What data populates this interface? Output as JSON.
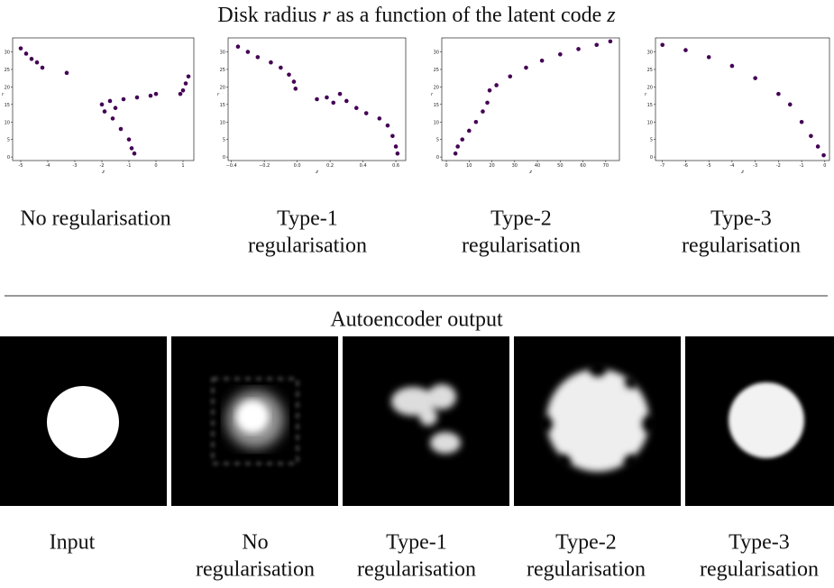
{
  "title_parts": [
    "Disk radius ",
    "r",
    " as a function of the latent code ",
    "z"
  ],
  "chart_data": [
    {
      "type": "scatter",
      "xlabel": "z",
      "ylabel": "r",
      "color": "#440154",
      "x": [
        -5.0,
        -4.8,
        -4.6,
        -4.4,
        -4.2,
        -3.3,
        -2.0,
        -1.9,
        -1.7,
        -1.5,
        -1.2,
        -0.7,
        -0.2,
        0,
        -1.6,
        -1.3,
        -1.0,
        -0.9,
        -0.8,
        0.9,
        1.0,
        1.1,
        1.2
      ],
      "values": [
        31,
        29.5,
        28,
        27,
        25.5,
        24,
        15,
        13,
        16,
        14,
        16.5,
        17,
        17.5,
        18,
        11,
        8,
        5,
        2.5,
        1,
        18,
        19,
        21,
        23
      ],
      "xlim": [
        -5.3,
        1.4
      ],
      "xticks": [
        -5,
        -4,
        -3,
        -2,
        -1,
        0,
        1
      ],
      "ylim": [
        -1,
        34
      ],
      "yticks": [
        0,
        5,
        10,
        15,
        20,
        25,
        30
      ]
    },
    {
      "type": "scatter",
      "xlabel": "z",
      "ylabel": "r",
      "color": "#440154",
      "x": [
        -0.36,
        -0.3,
        -0.24,
        -0.16,
        -0.1,
        -0.05,
        -0.02,
        -0.01,
        0.12,
        0.18,
        0.22,
        0.26,
        0.3,
        0.36,
        0.42,
        0.5,
        0.55,
        0.58,
        0.6,
        0.61
      ],
      "values": [
        31.5,
        30,
        28.5,
        27,
        25.5,
        23.5,
        21.5,
        19.5,
        16.5,
        17,
        15.5,
        18,
        16,
        14,
        12.5,
        11,
        9,
        6,
        3,
        1
      ],
      "xlim": [
        -0.42,
        0.66
      ],
      "xticks": [
        {
          "value": -0.4,
          "label": "−0.4"
        },
        {
          "value": -0.2,
          "label": "−0.2"
        },
        {
          "value": 0,
          "label": "0.0"
        },
        {
          "value": 0.2,
          "label": "0.2"
        },
        {
          "value": 0.4,
          "label": "0.4"
        },
        {
          "value": 0.6,
          "label": "0.6"
        }
      ],
      "ylim": [
        -1,
        34
      ],
      "yticks": [
        0,
        5,
        10,
        15,
        20,
        25,
        30
      ]
    },
    {
      "type": "scatter",
      "xlabel": "z",
      "ylabel": "r",
      "color": "#440154",
      "x": [
        4,
        5,
        7,
        10,
        13,
        16,
        18,
        19,
        22,
        28,
        35,
        42,
        50,
        58,
        66,
        72
      ],
      "values": [
        1,
        3,
        5,
        7.5,
        10,
        13,
        15.5,
        19,
        20.5,
        23,
        25.5,
        27.5,
        29.3,
        30.8,
        32,
        33
      ],
      "xlim": [
        -2,
        76
      ],
      "xticks": [
        0,
        10,
        20,
        30,
        40,
        50,
        60,
        70
      ],
      "ylim": [
        -1,
        34
      ],
      "yticks": [
        0,
        5,
        10,
        15,
        20,
        25,
        30
      ]
    },
    {
      "type": "scatter",
      "xlabel": "z",
      "ylabel": "r",
      "color": "#440154",
      "x": [
        -7,
        -6,
        -5,
        -4,
        -3,
        -2,
        -1.5,
        -1,
        -0.6,
        -0.3,
        -0.05
      ],
      "values": [
        32,
        30.5,
        28.5,
        26,
        22.5,
        18,
        15,
        10,
        6,
        3,
        0.5
      ],
      "xlim": [
        -7.3,
        0.2
      ],
      "xticks": [
        -7,
        -6,
        -5,
        -4,
        -3,
        -2,
        -1,
        0
      ],
      "ylim": [
        -1,
        34
      ],
      "yticks": [
        0,
        5,
        10,
        15,
        20,
        25,
        30
      ]
    }
  ],
  "plot_captions": [
    [
      "No regularisation"
    ],
    [
      "Type-1",
      "regularisation"
    ],
    [
      "Type-2",
      "regularisation"
    ],
    [
      "Type-3",
      "regularisation"
    ]
  ],
  "section_title": "Autoencoder output",
  "image_captions": [
    [
      "Input"
    ],
    [
      "No",
      "regularisation"
    ],
    [
      "Type-1",
      "regularisation"
    ],
    [
      "Type-2",
      "regularisation"
    ],
    [
      "Type-3",
      "regularisation"
    ]
  ]
}
